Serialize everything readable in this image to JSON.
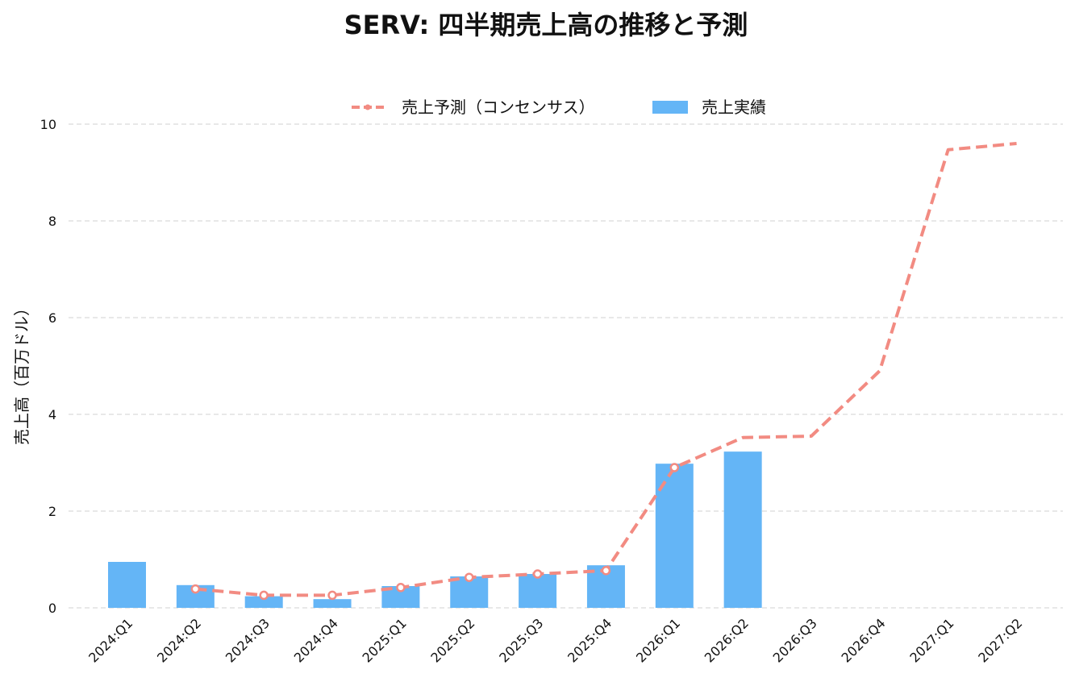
{
  "chart_data": {
    "type": "bar+line",
    "title": "SERV: 四半期売上高の推移と予測",
    "ylabel": "売上高（百万ドル）",
    "xlabel": "",
    "ylim": [
      0,
      10
    ],
    "yticks": [
      0,
      2,
      4,
      6,
      8,
      10
    ],
    "grid": "horizontal-dashed",
    "legend_position": "top-center",
    "categories": [
      "2024:Q1",
      "2024:Q2",
      "2024:Q3",
      "2024:Q4",
      "2025:Q1",
      "2025:Q2",
      "2025:Q3",
      "2025:Q4",
      "2026:Q1",
      "2026:Q2",
      "2026:Q3",
      "2026:Q4",
      "2027:Q1",
      "2027:Q2"
    ],
    "series": [
      {
        "name": "売上予測（コンセンサス）",
        "type": "line",
        "style": "dashed",
        "color": "#f28b82",
        "values": [
          null,
          0.39,
          0.26,
          0.26,
          0.42,
          0.63,
          0.7,
          0.77,
          2.9,
          3.52,
          3.55,
          4.9,
          9.47,
          9.6
        ],
        "markers": [
          false,
          true,
          true,
          true,
          true,
          true,
          true,
          true,
          true,
          false,
          false,
          false,
          false,
          false
        ]
      },
      {
        "name": "売上実績",
        "type": "bar",
        "color": "#64b5f6",
        "values": [
          0.95,
          0.47,
          0.24,
          0.18,
          0.45,
          0.65,
          0.7,
          0.88,
          2.98,
          3.23,
          null,
          null,
          null,
          null
        ]
      }
    ]
  }
}
